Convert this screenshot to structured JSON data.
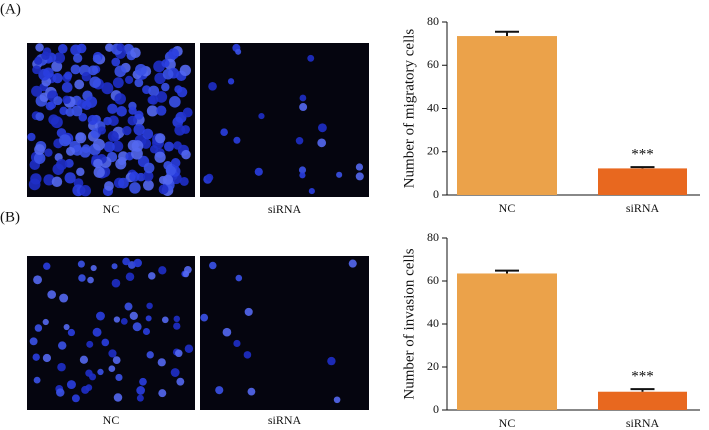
{
  "chart_data": [
    {
      "type": "bar",
      "panel_label": "(A)",
      "image_captions": [
        "NC",
        "siRNA"
      ],
      "ylabel": "Number of migratory cells",
      "categories": [
        "NC",
        "siRNA"
      ],
      "values": [
        73.5,
        12.3
      ],
      "errors": [
        2,
        0.6
      ],
      "colors": [
        "#eba24a",
        "#e8681f"
      ],
      "annotations": [
        null,
        "***"
      ],
      "ylim": [
        0,
        80
      ],
      "yticks": [
        0,
        20,
        40,
        60,
        80
      ]
    },
    {
      "type": "bar",
      "panel_label": "(B)",
      "image_captions": [
        "NC",
        "siRNA"
      ],
      "ylabel": "Number of invasion cells",
      "categories": [
        "NC",
        "siRNA"
      ],
      "values": [
        63.5,
        8.5
      ],
      "errors": [
        1.3,
        1.2
      ],
      "colors": [
        "#eba24a",
        "#e8681f"
      ],
      "annotations": [
        null,
        "***"
      ],
      "ylim": [
        0,
        80
      ],
      "yticks": [
        0,
        20,
        40,
        60,
        80
      ]
    }
  ]
}
